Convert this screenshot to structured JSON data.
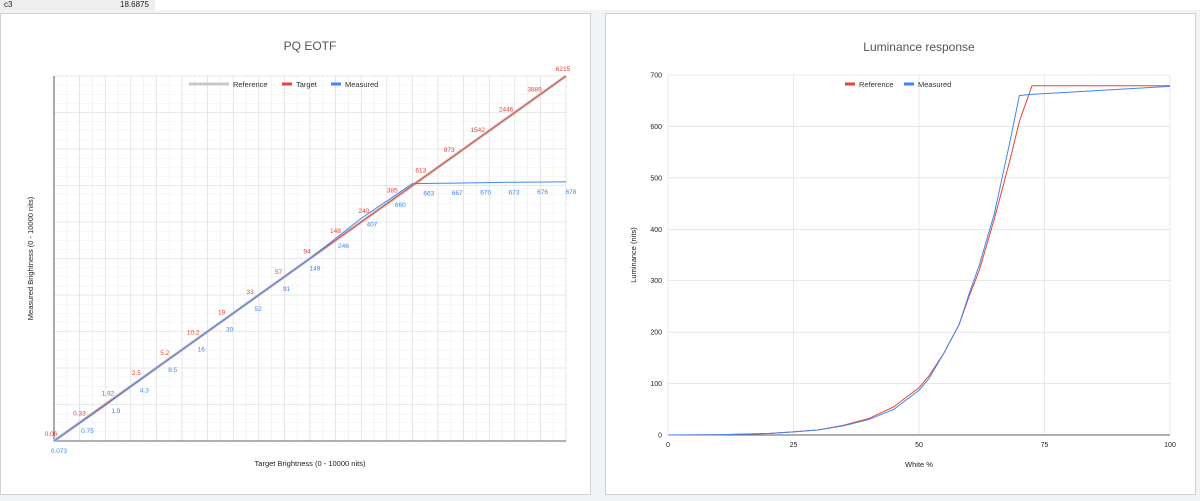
{
  "cell": {
    "ref": "c3",
    "value": "18.6875"
  },
  "colors": {
    "reference": "#c8c8c8",
    "target": "#ea4335",
    "measured": "#4285f4",
    "grid": "#d9d9d9"
  },
  "chart_data": [
    {
      "type": "line",
      "title": "PQ EOTF",
      "xlabel": "Target Brightness  (0 - 10000 nits)",
      "ylabel": "Measured Brightness  (0 - 10000 nits)",
      "legend": [
        "Reference",
        "Target",
        "Measured"
      ],
      "legend_position": "top",
      "grid": true,
      "series": [
        {
          "name": "Reference",
          "x": [
            0,
            1
          ],
          "y": [
            0,
            1
          ]
        },
        {
          "name": "Target",
          "x": [
            0,
            1
          ],
          "y": [
            0,
            1
          ]
        },
        {
          "name": "Measured",
          "x": [
            0,
            0.1,
            0.2,
            0.3,
            0.4,
            0.5,
            0.6,
            0.7,
            0.8,
            0.9,
            1.0
          ],
          "y": [
            0,
            0.098,
            0.2,
            0.3,
            0.4,
            0.5,
            0.61,
            0.705,
            0.707,
            0.709,
            0.71
          ]
        }
      ],
      "target_labels": [
        "0.06",
        "0.33",
        "1.92",
        "2.5",
        "5.2",
        "10.2",
        "19",
        "33",
        "57",
        "94",
        "148",
        "240",
        "385",
        "613",
        "973",
        "1542",
        "2446",
        "3889",
        "6215"
      ],
      "measured_labels": [
        "0.073",
        "0.75",
        "1.9",
        "4.3",
        "8.5",
        "16",
        "30",
        "52",
        "91",
        "149",
        "246",
        "407",
        "660",
        "663",
        "667",
        "670",
        "673",
        "676",
        "678"
      ]
    },
    {
      "type": "line",
      "title": "Luminance response",
      "xlabel": "White %",
      "ylabel": "Luminance (nits)",
      "legend": [
        "Reference",
        "Measured"
      ],
      "legend_position": "top",
      "grid": true,
      "xlim": [
        0,
        100
      ],
      "ylim": [
        0,
        700
      ],
      "xticks": [
        "0",
        "25",
        "50",
        "75",
        "100"
      ],
      "yticks": [
        "0",
        "100",
        "200",
        "300",
        "400",
        "500",
        "600",
        "700"
      ],
      "series": [
        {
          "name": "Reference",
          "x": [
            0,
            10,
            20,
            25,
            30,
            35,
            40,
            45,
            50,
            52,
            55,
            58,
            60,
            62,
            65,
            68,
            70,
            72.5,
            100
          ],
          "y": [
            0,
            0.5,
            3,
            6,
            10,
            19,
            32,
            55,
            92,
            115,
            160,
            215,
            270,
            320,
            420,
            530,
            610,
            679,
            679
          ]
        },
        {
          "name": "Measured",
          "x": [
            0,
            10,
            20,
            25,
            30,
            35,
            40,
            45,
            50,
            52,
            55,
            58,
            60,
            62,
            65,
            68,
            70,
            72,
            100
          ],
          "y": [
            0,
            0.5,
            3,
            6,
            10,
            18,
            30,
            50,
            87,
            110,
            160,
            215,
            275,
            330,
            430,
            565,
            660,
            662,
            678
          ]
        }
      ]
    }
  ]
}
